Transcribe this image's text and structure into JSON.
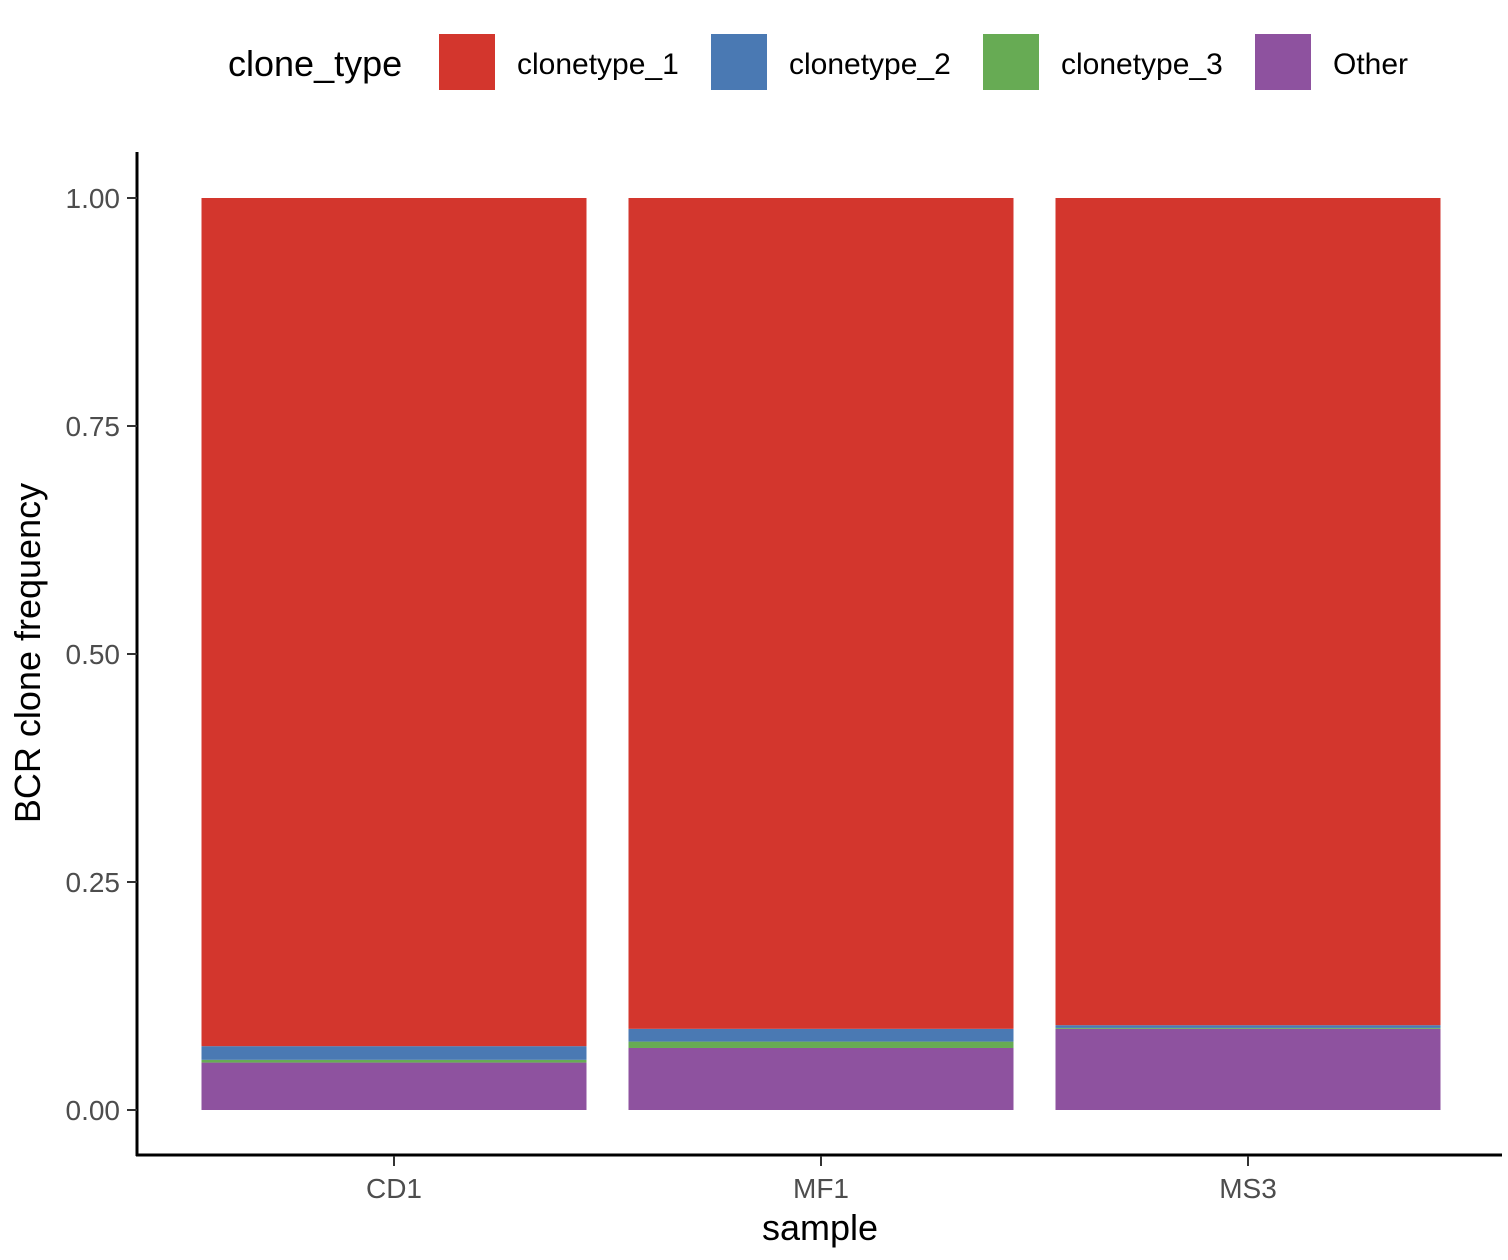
{
  "chart_data": {
    "type": "bar",
    "stacked": true,
    "title": "",
    "xlabel": "sample",
    "ylabel": "BCR clone frequency",
    "ylim": [
      0,
      1
    ],
    "y_ticks": [
      "0.00",
      "0.25",
      "0.50",
      "0.75",
      "1.00"
    ],
    "categories": [
      "CD1",
      "MF1",
      "MS3"
    ],
    "legend": {
      "title": "clone_type",
      "position": "top"
    },
    "series": [
      {
        "name": "Other",
        "color": "#8E529F",
        "values": [
          0.052,
          0.068,
          0.089
        ]
      },
      {
        "name": "clonetype_3",
        "color": "#67AB54",
        "values": [
          0.003,
          0.007,
          0.001
        ]
      },
      {
        "name": "clonetype_2",
        "color": "#4A79B3",
        "values": [
          0.015,
          0.014,
          0.003
        ]
      },
      {
        "name": "clonetype_1",
        "color": "#D3362D",
        "values": [
          0.93,
          0.911,
          0.907
        ]
      }
    ],
    "legend_order": [
      "clonetype_1",
      "clonetype_2",
      "clonetype_3",
      "Other"
    ],
    "grid": false
  }
}
